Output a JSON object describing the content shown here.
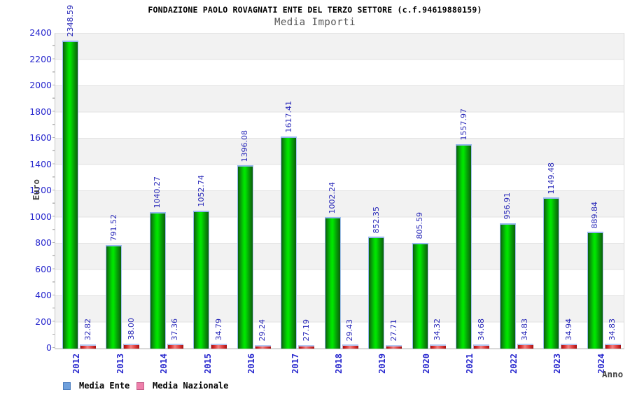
{
  "chart_data": {
    "type": "bar",
    "title": "FONDAZIONE PAOLO ROVAGNATI ENTE DEL TERZO SETTORE (c.f.94619880159)",
    "subtitle": "Media Importi",
    "xlabel": "Anno",
    "ylabel": "Euro",
    "categories": [
      "2012",
      "2013",
      "2014",
      "2015",
      "2016",
      "2017",
      "2018",
      "2019",
      "2020",
      "2021",
      "2022",
      "2023",
      "2024"
    ],
    "series": [
      {
        "name": "Media Ente",
        "bar_color": "#00dc00",
        "legend_swatch_fill": "#6fa0dc",
        "legend_swatch_border": "#4d7ebf",
        "values": [
          2348.59,
          791.52,
          1040.27,
          1052.74,
          1396.08,
          1617.41,
          1002.24,
          852.35,
          805.59,
          1557.97,
          956.91,
          1149.48,
          889.84
        ]
      },
      {
        "name": "Media Nazionale",
        "bar_color": "#e03030",
        "legend_swatch_fill": "#ee7faa",
        "legend_swatch_border": "#c45f8a",
        "values": [
          32.82,
          38.0,
          37.36,
          34.79,
          29.24,
          27.19,
          29.43,
          27.71,
          34.32,
          34.68,
          34.83,
          34.94,
          34.83
        ]
      }
    ],
    "ylim": [
      0,
      2400
    ],
    "y_tick_step": 200,
    "y_minor_tick_step": 100,
    "grid": "alternating horizontal bands every 200 units",
    "legend_position": "bottom-left",
    "value_label_style": "rotated 90deg above each bar, 2 decimals",
    "colors": {
      "axis_text": "#2525cd",
      "value_label": "#2828b8",
      "title": "#000000",
      "subtitle": "#555555",
      "axis_title": "#444444",
      "band_gray": "#f2f2f2",
      "band_white": "#ffffff",
      "gridline": "#e2e2e2",
      "axis_line": "#c8c8c8",
      "bar_cap_blue": "#94b6ee"
    }
  }
}
